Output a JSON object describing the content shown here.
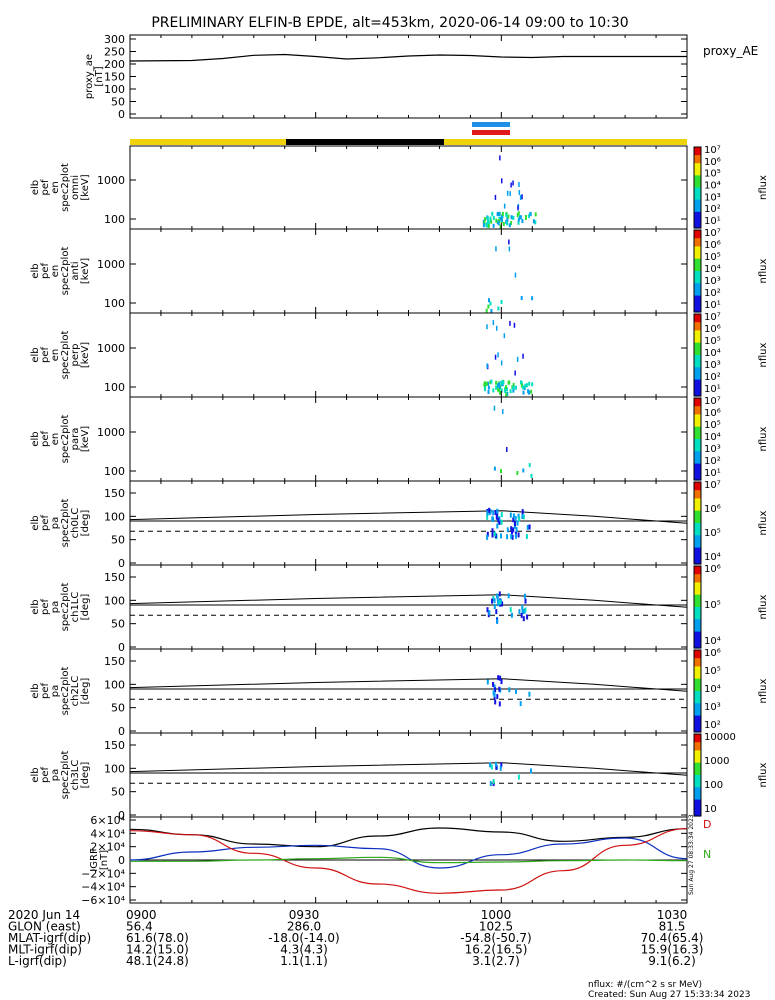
{
  "title": "PRELIMINARY ELFIN-B EPDE, alt=453km, 2020-06-14 09:00 to 10:30",
  "colors": {
    "yellow_bar": "#f0d20a",
    "black_bar": "#000000",
    "blue_bar": "#1e8fe6",
    "red_bar": "#e01a1a"
  },
  "footer": {
    "units": "nflux: #/(cm^2 s sr MeV)",
    "created": "Created: Sun Aug 27 15:33:34 2023",
    "side_stamp": "Sun Aug 27 08:33:34 2023"
  },
  "chart_data": [
    {
      "type": "line",
      "panel": "proxy_ae",
      "ylabel": [
        "proxy_ae",
        "[nT]"
      ],
      "legend": "proxy_AE",
      "ylim": [
        0,
        300
      ],
      "yticks": [
        "300",
        "250",
        "200",
        "150",
        "100",
        "50",
        "0"
      ],
      "x_minutes": [
        0,
        10,
        15,
        20,
        25,
        30,
        35,
        40,
        45,
        50,
        55,
        60,
        65,
        70,
        75,
        80,
        85,
        90
      ],
      "values": [
        212,
        214,
        222,
        235,
        238,
        230,
        220,
        225,
        232,
        236,
        234,
        228,
        226,
        230,
        230,
        230,
        230,
        230
      ]
    },
    {
      "type": "heatmap",
      "panel": "spec2plot omni",
      "ylabel": [
        "elb",
        "pef",
        "en",
        "spec2plot",
        "omni",
        "[keV]"
      ],
      "yticks": [
        "1000",
        "100"
      ],
      "colorbar": {
        "label": "nflux",
        "ticks": [
          "10⁷",
          "10⁶",
          "10⁵",
          "10⁴",
          "10³",
          "10²",
          "10¹"
        ]
      }
    },
    {
      "type": "heatmap",
      "panel": "spec2plot anti",
      "ylabel": [
        "elb",
        "pef",
        "en",
        "spec2plot",
        "anti",
        "[keV]"
      ],
      "yticks": [
        "1000",
        "100"
      ],
      "colorbar": {
        "label": "nflux",
        "ticks": [
          "10⁷",
          "10⁶",
          "10⁵",
          "10⁴",
          "10³",
          "10²",
          "10¹"
        ]
      }
    },
    {
      "type": "heatmap",
      "panel": "spec2plot perp",
      "ylabel": [
        "elb",
        "pef",
        "en",
        "spec2plot",
        "perp",
        "[keV]"
      ],
      "yticks": [
        "1000",
        "100"
      ],
      "colorbar": {
        "label": "nflux",
        "ticks": [
          "10⁷",
          "10⁶",
          "10⁵",
          "10⁴",
          "10³",
          "10²",
          "10¹"
        ]
      }
    },
    {
      "type": "heatmap",
      "panel": "spec2plot para",
      "ylabel": [
        "elb",
        "pef",
        "en",
        "spec2plot",
        "para",
        "[keV]"
      ],
      "yticks": [
        "1000",
        "100"
      ],
      "colorbar": {
        "label": "nflux",
        "ticks": [
          "10⁷",
          "10⁶",
          "10⁵",
          "10⁴",
          "10³",
          "10²",
          "10¹"
        ]
      }
    },
    {
      "type": "heatmap",
      "panel": "spec2plot ch0LC",
      "ylabel": [
        "elb",
        "pef",
        "pa",
        "spec2plot",
        "ch0LC",
        "[deg]"
      ],
      "yticks": [
        "150",
        "100",
        "50",
        "0"
      ],
      "colorbar": {
        "label": "nflux",
        "ticks": [
          "10⁷",
          "10⁶",
          "10⁵",
          "10⁴"
        ]
      }
    },
    {
      "type": "heatmap",
      "panel": "spec2plot ch1LC",
      "ylabel": [
        "elb",
        "pef",
        "pa",
        "spec2plot",
        "ch1LC",
        "[deg]"
      ],
      "yticks": [
        "150",
        "100",
        "50",
        "0"
      ],
      "colorbar": {
        "label": "nflux",
        "ticks": [
          "10⁶",
          "10⁵",
          "10⁴"
        ]
      }
    },
    {
      "type": "heatmap",
      "panel": "spec2plot ch2LC",
      "ylabel": [
        "elb",
        "pef",
        "pa",
        "spec2plot",
        "ch2LC",
        "[deg]"
      ],
      "yticks": [
        "150",
        "100",
        "50",
        "0"
      ],
      "colorbar": {
        "label": "nflux",
        "ticks": [
          "10⁶",
          "10⁵",
          "10⁴",
          "10³",
          "10²"
        ]
      }
    },
    {
      "type": "heatmap",
      "panel": "spec2plot ch3LC",
      "ylabel": [
        "elb",
        "pef",
        "pa",
        "spec2plot",
        "ch3LC",
        "[deg]"
      ],
      "yticks": [
        "150",
        "100",
        "50",
        "0"
      ],
      "colorbar": {
        "label": "nflux",
        "ticks": [
          "10000",
          "1000",
          "100",
          "10"
        ]
      }
    },
    {
      "type": "line",
      "panel": "IGRF",
      "ylabel": [
        "IGRF",
        "[nT]"
      ],
      "ylim": [
        -60000,
        60000
      ],
      "yticks": [
        "6×10⁴",
        "4×10⁴",
        "2×10⁴",
        "0",
        "−2×10⁴",
        "−4×10⁴",
        "−6×10⁴"
      ],
      "legend": [
        "D",
        "N"
      ],
      "x_minutes": [
        0,
        10,
        20,
        30,
        40,
        50,
        60,
        70,
        80,
        90
      ],
      "series": [
        {
          "color": "#000000",
          "values": [
            46000,
            38000,
            24000,
            20000,
            36000,
            48000,
            42000,
            28000,
            34000,
            47000
          ]
        },
        {
          "color": "#0b2fbf",
          "values": [
            0,
            12000,
            19000,
            22000,
            17000,
            -12000,
            8000,
            24000,
            33000,
            2000
          ]
        },
        {
          "color": "#d01010",
          "values": [
            44000,
            38000,
            10000,
            -12000,
            -36000,
            -50000,
            -45000,
            -16000,
            22000,
            47000
          ]
        },
        {
          "color": "#2fa61c",
          "values": [
            -2000,
            -2000,
            0,
            2000,
            4000,
            -4000,
            -3000,
            -1000,
            0,
            -1000
          ]
        }
      ]
    }
  ],
  "x_axis": {
    "rows": [
      [
        "2020 Jun 14",
        "0900",
        "0930",
        "1000",
        "1030"
      ],
      [
        "GLON (east)",
        "56.4",
        "286.0",
        "102.5",
        "81.5"
      ],
      [
        "MLAT-igrf(dip)",
        "61.6(78.0)",
        "-18.0(-14.0)",
        "-54.8(-50.7)",
        "70.4(65.4)"
      ],
      [
        "MLT-igrf(dip)",
        "14.2(15.0)",
        "4.3(4.3)",
        "16.2(16.5)",
        "15.9(16.3)"
      ],
      [
        "L-igrf(dip)",
        "48.1(24.8)",
        "1.1(1.1)",
        "3.1(2.7)",
        "9.1(6.2)"
      ]
    ]
  }
}
